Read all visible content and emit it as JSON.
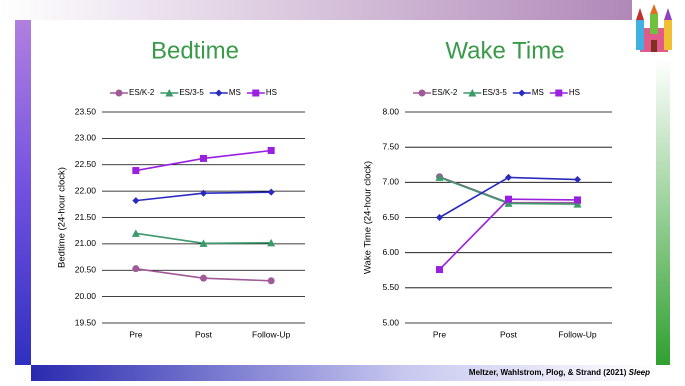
{
  "chart_data": [
    {
      "type": "line",
      "title": "Bedtime",
      "y_label": "Bedtime (24-hour clock)",
      "categories": [
        "Pre",
        "Post",
        "Follow-Up"
      ],
      "series": [
        {
          "name": "ES/K-2",
          "color": "#a05a98",
          "marker": "circle",
          "values": [
            20.53,
            20.35,
            20.3
          ]
        },
        {
          "name": "ES/3-5",
          "color": "#3a9a6a",
          "marker": "triangle",
          "values": [
            21.2,
            21.01,
            21.02
          ]
        },
        {
          "name": "MS",
          "color": "#2a2abf",
          "marker": "diamond",
          "values": [
            21.82,
            21.96,
            21.98
          ]
        },
        {
          "name": "HS",
          "color": "#9b1fe0",
          "marker": "square",
          "values": [
            22.39,
            22.62,
            22.77
          ]
        }
      ],
      "ylim": [
        19.5,
        23.5
      ],
      "yticks": [
        {
          "value": 19.5,
          "label": "19.50"
        },
        {
          "value": 20,
          "label": "20.00"
        },
        {
          "value": 20.5,
          "label": "20.50"
        },
        {
          "value": 21,
          "label": "21.00"
        },
        {
          "value": 21.5,
          "label": "21.50"
        },
        {
          "value": 22,
          "label": "22.00"
        },
        {
          "value": 22.5,
          "label": "22.50"
        },
        {
          "value": 23,
          "label": "23.00"
        },
        {
          "value": 23.5,
          "label": "23.50"
        }
      ],
      "grid": true,
      "legend": "top"
    },
    {
      "type": "line",
      "title": "Wake Time",
      "y_label": "Wake Time (24-hour clock)",
      "categories": [
        "Pre",
        "Post",
        "Follow-Up"
      ],
      "series": [
        {
          "name": "ES/K-2",
          "color": "#a05a98",
          "marker": "circle",
          "values": [
            7.08,
            6.71,
            6.71
          ]
        },
        {
          "name": "ES/3-5",
          "color": "#3a9a6a",
          "marker": "triangle",
          "values": [
            7.07,
            6.7,
            6.69
          ]
        },
        {
          "name": "MS",
          "color": "#2a2abf",
          "marker": "diamond",
          "values": [
            6.5,
            7.07,
            7.04
          ]
        },
        {
          "name": "HS",
          "color": "#9b1fe0",
          "marker": "square",
          "values": [
            5.76,
            6.76,
            6.75
          ]
        }
      ],
      "ylim": [
        5,
        8
      ],
      "yticks": [
        {
          "value": 5,
          "label": "5.00"
        },
        {
          "value": 5.5,
          "label": "5.50"
        },
        {
          "value": 6,
          "label": "6.00"
        },
        {
          "value": 6.5,
          "label": "6.50"
        },
        {
          "value": 7,
          "label": "7.00"
        },
        {
          "value": 7.5,
          "label": "7.50"
        },
        {
          "value": 8,
          "label": "8.00"
        }
      ],
      "grid": true,
      "legend": "top"
    }
  ],
  "citation": {
    "authors": "Meltzer, Wahlstrom, Plog, & Strand (2021)",
    "journal": "Sleep"
  }
}
